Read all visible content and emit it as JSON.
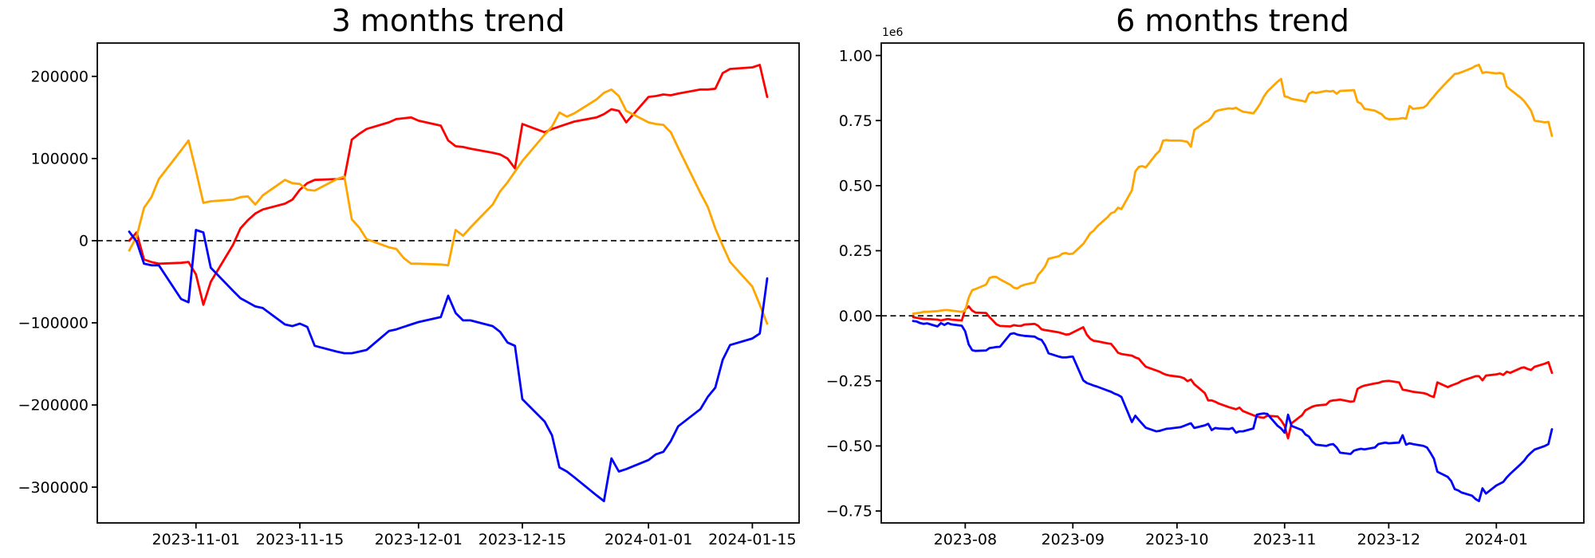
{
  "chart_data": [
    {
      "type": "line",
      "title": "3 months trend",
      "y_offset_label": "",
      "xlabel": "",
      "ylabel": "",
      "grid": false,
      "legend": null,
      "zero_dash_line": true,
      "x_margin_frac": 0.05,
      "y_margin_frac": 0.05,
      "x_dates": [
        "2023-10-23",
        "2023-10-24",
        "2023-10-25",
        "2023-10-26",
        "2023-10-27",
        "2023-10-30",
        "2023-10-31",
        "2023-11-01",
        "2023-11-02",
        "2023-11-03",
        "2023-11-06",
        "2023-11-07",
        "2023-11-08",
        "2023-11-09",
        "2023-11-10",
        "2023-11-13",
        "2023-11-14",
        "2023-11-15",
        "2023-11-16",
        "2023-11-17",
        "2023-11-20",
        "2023-11-21",
        "2023-11-22",
        "2023-11-23",
        "2023-11-24",
        "2023-11-27",
        "2023-11-28",
        "2023-11-29",
        "2023-11-30",
        "2023-12-01",
        "2023-12-04",
        "2023-12-05",
        "2023-12-06",
        "2023-12-07",
        "2023-12-08",
        "2023-12-11",
        "2023-12-12",
        "2023-12-13",
        "2023-12-14",
        "2023-12-15",
        "2023-12-18",
        "2023-12-19",
        "2023-12-20",
        "2023-12-21",
        "2023-12-22",
        "2023-12-25",
        "2023-12-26",
        "2023-12-27",
        "2023-12-28",
        "2023-12-29",
        "2024-01-01",
        "2024-01-02",
        "2024-01-03",
        "2024-01-04",
        "2024-01-05",
        "2024-01-08",
        "2024-01-09",
        "2024-01-10",
        "2024-01-11",
        "2024-01-12",
        "2024-01-15",
        "2024-01-16",
        "2024-01-17"
      ],
      "series": [
        {
          "name": "red",
          "color": "#ff0000",
          "values": [
            0,
            10000,
            -23000,
            -26000,
            -28000,
            -27000,
            -26000,
            -41000,
            -78000,
            -50000,
            -5000,
            15000,
            25000,
            33000,
            38000,
            45000,
            50000,
            62000,
            70000,
            74000,
            75000,
            76000,
            123000,
            130000,
            136000,
            144000,
            148000,
            149000,
            150000,
            146000,
            140000,
            122000,
            115000,
            114000,
            112000,
            107000,
            105000,
            100000,
            88000,
            142000,
            132000,
            136000,
            139000,
            142000,
            145000,
            150000,
            154000,
            160000,
            158000,
            144000,
            175000,
            176000,
            178000,
            177000,
            179000,
            184000,
            184000,
            185000,
            204000,
            209000,
            211000,
            214000,
            175000
          ]
        },
        {
          "name": "orange",
          "color": "#ffa500",
          "values": [
            -12000,
            5000,
            40000,
            53000,
            75000,
            110000,
            122000,
            85000,
            46000,
            48000,
            50000,
            53000,
            54000,
            44000,
            55000,
            74000,
            70000,
            69000,
            62000,
            61000,
            75000,
            78000,
            26000,
            16000,
            2000,
            -8000,
            -10000,
            -21000,
            -28000,
            -28000,
            -29000,
            -30000,
            13000,
            6000,
            16000,
            44000,
            60000,
            71000,
            84000,
            97000,
            129000,
            139000,
            156000,
            151000,
            155000,
            172000,
            180000,
            184000,
            176000,
            158000,
            144000,
            142000,
            141000,
            132000,
            113000,
            58000,
            41000,
            15000,
            -6000,
            -26000,
            -56000,
            -78000,
            -101000
          ]
        },
        {
          "name": "blue",
          "color": "#0000ff",
          "values": [
            11000,
            -1000,
            -28000,
            -30000,
            -30000,
            -71000,
            -75000,
            13000,
            10000,
            -33000,
            -61000,
            -70000,
            -75000,
            -80000,
            -82000,
            -102000,
            -104000,
            -101000,
            -105000,
            -128000,
            -135000,
            -137000,
            -137000,
            -135000,
            -133000,
            -110000,
            -108000,
            -105000,
            -102000,
            -99000,
            -93000,
            -67000,
            -88000,
            -97000,
            -97000,
            -104000,
            -111000,
            -124000,
            -128000,
            -193000,
            -220000,
            -237000,
            -276000,
            -281000,
            -288000,
            -310000,
            -317000,
            -265000,
            -281000,
            -278000,
            -267000,
            -260000,
            -257000,
            -244000,
            -226000,
            -205000,
            -190000,
            -179000,
            -145000,
            -127000,
            -119000,
            -113000,
            -46000
          ]
        }
      ],
      "yticks": [
        {
          "value": 200000,
          "label": "200000"
        },
        {
          "value": 100000,
          "label": "100000"
        },
        {
          "value": 0,
          "label": "0"
        },
        {
          "value": -100000,
          "label": "−100000"
        },
        {
          "value": -200000,
          "label": "−200000"
        },
        {
          "value": -300000,
          "label": "−300000"
        }
      ],
      "xticks": [
        {
          "date": "2023-11-01",
          "label": "2023-11-01"
        },
        {
          "date": "2023-11-15",
          "label": "2023-11-15"
        },
        {
          "date": "2023-12-01",
          "label": "2023-12-01"
        },
        {
          "date": "2023-12-15",
          "label": "2023-12-15"
        },
        {
          "date": "2024-01-01",
          "label": "2024-01-01"
        },
        {
          "date": "2024-01-15",
          "label": "2024-01-15"
        }
      ]
    },
    {
      "type": "line",
      "title": "6 months trend",
      "y_offset_label": "1e6",
      "xlabel": "",
      "ylabel": "",
      "grid": false,
      "legend": null,
      "zero_dash_line": true,
      "x_margin_frac": 0.05,
      "y_margin_frac": 0.05,
      "x_dates": [
        "2023-07-17",
        "2023-07-18",
        "2023-07-19",
        "2023-07-20",
        "2023-07-21",
        "2023-07-24",
        "2023-07-25",
        "2023-07-26",
        "2023-07-27",
        "2023-07-28",
        "2023-07-31",
        "2023-08-01",
        "2023-08-02",
        "2023-08-03",
        "2023-08-04",
        "2023-08-07",
        "2023-08-08",
        "2023-08-09",
        "2023-08-10",
        "2023-08-11",
        "2023-08-14",
        "2023-08-15",
        "2023-08-16",
        "2023-08-17",
        "2023-08-18",
        "2023-08-21",
        "2023-08-22",
        "2023-08-23",
        "2023-08-24",
        "2023-08-25",
        "2023-08-28",
        "2023-08-29",
        "2023-08-30",
        "2023-08-31",
        "2023-09-01",
        "2023-09-04",
        "2023-09-05",
        "2023-09-06",
        "2023-09-07",
        "2023-09-08",
        "2023-09-11",
        "2023-09-12",
        "2023-09-13",
        "2023-09-14",
        "2023-09-15",
        "2023-09-18",
        "2023-09-19",
        "2023-09-20",
        "2023-09-21",
        "2023-09-22",
        "2023-09-25",
        "2023-09-26",
        "2023-09-27",
        "2023-09-28",
        "2023-09-29",
        "2023-10-02",
        "2023-10-03",
        "2023-10-04",
        "2023-10-05",
        "2023-10-06",
        "2023-10-09",
        "2023-10-10",
        "2023-10-11",
        "2023-10-12",
        "2023-10-13",
        "2023-10-16",
        "2023-10-17",
        "2023-10-18",
        "2023-10-19",
        "2023-10-20",
        "2023-10-23",
        "2023-10-24",
        "2023-10-25",
        "2023-10-26",
        "2023-10-27",
        "2023-10-30",
        "2023-10-31",
        "2023-11-01",
        "2023-11-02",
        "2023-11-03",
        "2023-11-06",
        "2023-11-07",
        "2023-11-08",
        "2023-11-09",
        "2023-11-10",
        "2023-11-13",
        "2023-11-14",
        "2023-11-15",
        "2023-11-16",
        "2023-11-17",
        "2023-11-20",
        "2023-11-21",
        "2023-11-22",
        "2023-11-23",
        "2023-11-24",
        "2023-11-27",
        "2023-11-28",
        "2023-11-29",
        "2023-11-30",
        "2023-12-01",
        "2023-12-04",
        "2023-12-05",
        "2023-12-06",
        "2023-12-07",
        "2023-12-08",
        "2023-12-11",
        "2023-12-12",
        "2023-12-13",
        "2023-12-14",
        "2023-12-15",
        "2023-12-18",
        "2023-12-19",
        "2023-12-20",
        "2023-12-21",
        "2023-12-22",
        "2023-12-25",
        "2023-12-26",
        "2023-12-27",
        "2023-12-28",
        "2023-12-29",
        "2024-01-01",
        "2024-01-02",
        "2024-01-03",
        "2024-01-04",
        "2024-01-05",
        "2024-01-08",
        "2024-01-09",
        "2024-01-10",
        "2024-01-11",
        "2024-01-12",
        "2024-01-15",
        "2024-01-16",
        "2024-01-17"
      ],
      "series": [
        {
          "name": "red",
          "color": "#ff0000",
          "values": [
            -5000,
            -8000,
            -10000,
            -12000,
            -12000,
            -15000,
            -18000,
            -15000,
            -12000,
            -15000,
            -18000,
            25000,
            36000,
            20000,
            12000,
            11000,
            -5000,
            -19000,
            -33000,
            -39000,
            -41000,
            -36000,
            -38000,
            -39000,
            -34000,
            -31000,
            -38000,
            -52000,
            -55000,
            -57000,
            -64000,
            -68000,
            -72000,
            -71000,
            -64000,
            -44000,
            -72000,
            -88000,
            -96000,
            -98000,
            -106000,
            -108000,
            -124000,
            -142000,
            -147000,
            -153000,
            -160000,
            -165000,
            -181000,
            -196000,
            -210000,
            -215000,
            -222000,
            -227000,
            -230000,
            -235000,
            -240000,
            -251000,
            -245000,
            -263000,
            -297000,
            -325000,
            -325000,
            -330000,
            -337000,
            -351000,
            -355000,
            -359000,
            -353000,
            -366000,
            -382000,
            -387000,
            -390000,
            -392000,
            -384000,
            -387000,
            -402000,
            -423000,
            -471000,
            -413000,
            -382000,
            -363000,
            -356000,
            -349000,
            -345000,
            -341000,
            -328000,
            -325000,
            -324000,
            -322000,
            -330000,
            -328000,
            -281000,
            -273000,
            -268000,
            -260000,
            -258000,
            -253000,
            -251000,
            -250000,
            -256000,
            -284000,
            -286000,
            -289000,
            -292000,
            -297000,
            -301000,
            -308000,
            -312000,
            -256000,
            -274000,
            -268000,
            -263000,
            -258000,
            -250000,
            -237000,
            -232000,
            -232000,
            -248000,
            -230000,
            -225000,
            -222000,
            -227000,
            -215000,
            -219000,
            -201000,
            -198000,
            -204000,
            -208000,
            -196000,
            -184000,
            -178000,
            -219000
          ]
        },
        {
          "name": "orange",
          "color": "#ffa500",
          "values": [
            8000,
            10000,
            12000,
            15000,
            15000,
            18000,
            20000,
            22000,
            22000,
            20000,
            15000,
            20000,
            70000,
            98000,
            103000,
            120000,
            145000,
            150000,
            149000,
            140000,
            119000,
            108000,
            105000,
            114000,
            119000,
            128000,
            157000,
            172000,
            190000,
            219000,
            229000,
            239000,
            241000,
            237000,
            239000,
            276000,
            296000,
            317000,
            327000,
            343000,
            379000,
            394000,
            399000,
            415000,
            410000,
            482000,
            554000,
            572000,
            575000,
            570000,
            621000,
            634000,
            673000,
            675000,
            673000,
            673000,
            671000,
            668000,
            650000,
            714000,
            743000,
            749000,
            763000,
            784000,
            790000,
            797000,
            795000,
            799000,
            791000,
            784000,
            778000,
            795000,
            815000,
            842000,
            861000,
            900000,
            910000,
            843000,
            840000,
            833000,
            826000,
            822000,
            853000,
            860000,
            856000,
            864000,
            862000,
            864000,
            853000,
            864000,
            866000,
            867000,
            822000,
            815000,
            795000,
            788000,
            781000,
            774000,
            760000,
            755000,
            757000,
            760000,
            757000,
            806000,
            795000,
            800000,
            810000,
            828000,
            843000,
            859000,
            902000,
            915000,
            929000,
            931000,
            936000,
            952000,
            960000,
            964000,
            933000,
            936000,
            931000,
            933000,
            929000,
            881000,
            869000,
            838000,
            825000,
            807000,
            788000,
            750000,
            743000,
            745000,
            691000
          ]
        },
        {
          "name": "blue",
          "color": "#0000ff",
          "values": [
            -20000,
            -22000,
            -28000,
            -31000,
            -29000,
            -41000,
            -28000,
            -35000,
            -28000,
            -33000,
            -38000,
            -60000,
            -110000,
            -132000,
            -135000,
            -133000,
            -124000,
            -122000,
            -120000,
            -119000,
            -70000,
            -67000,
            -72000,
            -75000,
            -77000,
            -80000,
            -88000,
            -93000,
            -114000,
            -144000,
            -157000,
            -160000,
            -160000,
            -158000,
            -157000,
            -248000,
            -258000,
            -263000,
            -268000,
            -272000,
            -287000,
            -292000,
            -299000,
            -304000,
            -312000,
            -408000,
            -384000,
            -400000,
            -415000,
            -430000,
            -444000,
            -442000,
            -438000,
            -434000,
            -433000,
            -428000,
            -423000,
            -418000,
            -413000,
            -431000,
            -421000,
            -415000,
            -439000,
            -431000,
            -433000,
            -435000,
            -431000,
            -449000,
            -444000,
            -444000,
            -433000,
            -380000,
            -377000,
            -375000,
            -377000,
            -423000,
            -433000,
            -449000,
            -380000,
            -423000,
            -439000,
            -456000,
            -464000,
            -483000,
            -495000,
            -500000,
            -495000,
            -493000,
            -506000,
            -526000,
            -531000,
            -518000,
            -514000,
            -511000,
            -513000,
            -506000,
            -493000,
            -490000,
            -487000,
            -490000,
            -487000,
            -459000,
            -495000,
            -490000,
            -493000,
            -500000,
            -506000,
            -526000,
            -549000,
            -599000,
            -619000,
            -635000,
            -666000,
            -671000,
            -679000,
            -691000,
            -704000,
            -712000,
            -663000,
            -683000,
            -652000,
            -645000,
            -638000,
            -621000,
            -607000,
            -570000,
            -557000,
            -539000,
            -526000,
            -514000,
            -500000,
            -493000,
            -436000
          ]
        }
      ],
      "yticks": [
        {
          "value": 1000000,
          "label": "1.00"
        },
        {
          "value": 750000,
          "label": "0.75"
        },
        {
          "value": 500000,
          "label": "0.50"
        },
        {
          "value": 250000,
          "label": "0.25"
        },
        {
          "value": 0,
          "label": "0.00"
        },
        {
          "value": -250000,
          "label": "−0.25"
        },
        {
          "value": -500000,
          "label": "−0.50"
        },
        {
          "value": -750000,
          "label": "−0.75"
        }
      ],
      "xticks": [
        {
          "date": "2023-08-01",
          "label": "2023-08"
        },
        {
          "date": "2023-09-01",
          "label": "2023-09"
        },
        {
          "date": "2023-10-01",
          "label": "2023-10"
        },
        {
          "date": "2023-11-01",
          "label": "2023-11"
        },
        {
          "date": "2023-12-01",
          "label": "2023-12"
        },
        {
          "date": "2024-01-01",
          "label": "2024-01"
        }
      ]
    }
  ]
}
